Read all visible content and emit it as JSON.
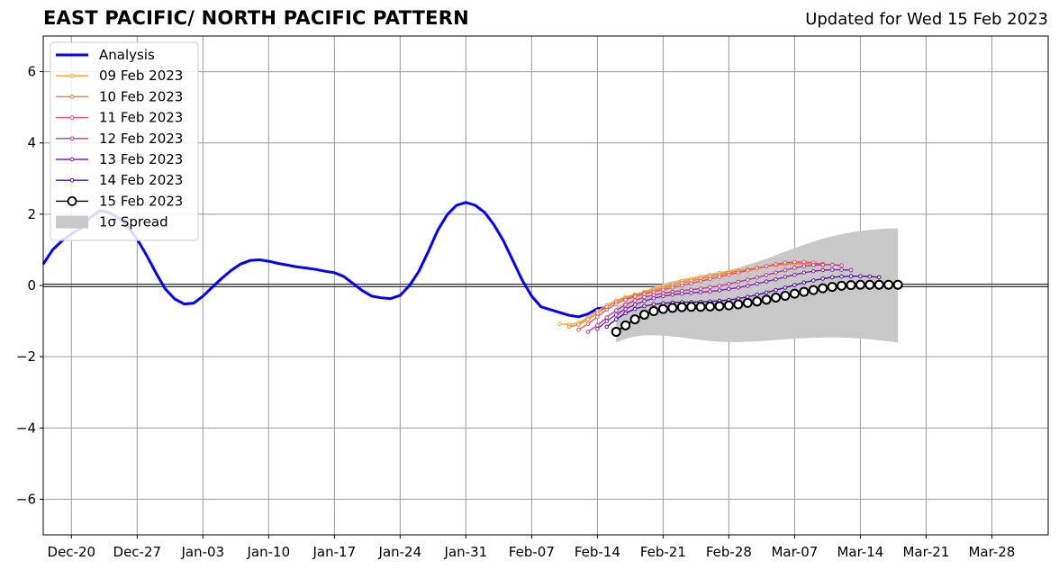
{
  "header": {
    "title": "EAST PACIFIC/ NORTH PACIFIC PATTERN",
    "subtitle": "Updated for Wed 15 Feb 2023"
  },
  "chart_data": {
    "type": "line",
    "title": "EAST PACIFIC/ NORTH PACIFIC PATTERN",
    "subtitle": "Updated for Wed 15 Feb 2023",
    "xlabel": "",
    "ylabel": "",
    "xlim": [
      "2022-12-17",
      "2023-04-03"
    ],
    "ylim": [
      -7,
      7
    ],
    "x_ticks": [
      "Dec-20",
      "Dec-27",
      "Jan-03",
      "Jan-10",
      "Jan-17",
      "Jan-24",
      "Jan-31",
      "Feb-07",
      "Feb-14",
      "Feb-21",
      "Feb-28",
      "Mar-07",
      "Mar-14",
      "Mar-21",
      "Mar-28"
    ],
    "x_tick_dates": [
      "2022-12-20",
      "2022-12-27",
      "2023-01-03",
      "2023-01-10",
      "2023-01-17",
      "2023-01-24",
      "2023-01-31",
      "2023-02-07",
      "2023-02-14",
      "2023-02-21",
      "2023-02-28",
      "2023-03-07",
      "2023-03-14",
      "2023-03-21",
      "2023-03-28"
    ],
    "y_ticks": [
      -6,
      -4,
      -2,
      0,
      2,
      4,
      6
    ],
    "y_tick_labels": [
      "−6",
      "−4",
      "−2",
      "0",
      "2",
      "4",
      "6"
    ],
    "grid": true,
    "legend_placement": "top-left",
    "zero_line": true,
    "series": [
      {
        "name": "Analysis",
        "color": "#0000ff",
        "start": "2022-12-17",
        "values": [
          0.6,
          1.0,
          1.25,
          1.45,
          1.6,
          1.9,
          2.1,
          2.05,
          1.9,
          1.65,
          1.3,
          0.85,
          0.35,
          -0.1,
          -0.38,
          -0.52,
          -0.5,
          -0.3,
          -0.05,
          0.2,
          0.42,
          0.6,
          0.7,
          0.72,
          0.68,
          0.62,
          0.57,
          0.52,
          0.49,
          0.45,
          0.4,
          0.36,
          0.25,
          0.05,
          -0.15,
          -0.3,
          -0.35,
          -0.37,
          -0.28,
          0.0,
          0.4,
          0.95,
          1.55,
          1.98,
          2.25,
          2.33,
          2.25,
          2.05,
          1.7,
          1.25,
          0.7,
          0.15,
          -0.3,
          -0.6,
          -0.68,
          -0.76,
          -0.84,
          -0.88,
          -0.8,
          -0.65,
          -0.62
        ]
      },
      {
        "name": "09 Feb 2023",
        "color": "#f5a623",
        "start": "2023-02-10",
        "values": [
          -1.08,
          -1.1,
          -1.05,
          -0.9,
          -0.72,
          -0.55,
          -0.42,
          -0.32,
          -0.25,
          -0.18,
          -0.1,
          -0.02,
          0.05,
          0.12,
          0.18,
          0.24,
          0.3,
          0.35,
          0.39,
          0.42,
          0.46,
          0.5,
          0.54,
          0.58,
          0.6,
          0.61,
          0.61,
          0.6,
          0.56
        ]
      },
      {
        "name": "10 Feb 2023",
        "color": "#f07c3a",
        "start": "2023-02-11",
        "values": [
          -1.16,
          -1.1,
          -0.95,
          -0.78,
          -0.6,
          -0.46,
          -0.36,
          -0.28,
          -0.21,
          -0.14,
          -0.07,
          0.0,
          0.07,
          0.13,
          0.19,
          0.25,
          0.3,
          0.35,
          0.4,
          0.44,
          0.48,
          0.53,
          0.57,
          0.6,
          0.62,
          0.62,
          0.61,
          0.58
        ]
      },
      {
        "name": "11 Feb 2023",
        "color": "#e0566e",
        "start": "2023-02-12",
        "values": [
          -1.24,
          -1.08,
          -0.88,
          -0.68,
          -0.52,
          -0.4,
          -0.31,
          -0.24,
          -0.18,
          -0.12,
          -0.06,
          0.0,
          0.06,
          0.12,
          0.18,
          0.24,
          0.3,
          0.36,
          0.42,
          0.48,
          0.54,
          0.6,
          0.64,
          0.66,
          0.66,
          0.64,
          0.6
        ]
      },
      {
        "name": "12 Feb 2023",
        "color": "#b83b97",
        "start": "2023-02-13",
        "values": [
          -1.3,
          -1.12,
          -0.9,
          -0.7,
          -0.54,
          -0.42,
          -0.33,
          -0.27,
          -0.22,
          -0.18,
          -0.15,
          -0.12,
          -0.09,
          -0.05,
          -0.01,
          0.04,
          0.1,
          0.16,
          0.22,
          0.29,
          0.36,
          0.43,
          0.49,
          0.54,
          0.57,
          0.58,
          0.58,
          0.56
        ]
      },
      {
        "name": "13 Feb 2023",
        "color": "#8a1fb0",
        "start": "2023-02-14",
        "values": [
          -1.22,
          -1.0,
          -0.82,
          -0.66,
          -0.54,
          -0.44,
          -0.36,
          -0.3,
          -0.26,
          -0.23,
          -0.21,
          -0.19,
          -0.17,
          -0.14,
          -0.1,
          -0.06,
          -0.01,
          0.05,
          0.11,
          0.17,
          0.24,
          0.3,
          0.36,
          0.4,
          0.43,
          0.44,
          0.44,
          0.43
        ]
      },
      {
        "name": "14 Feb 2023",
        "color": "#4b0f9c",
        "start": "2023-02-15",
        "values": [
          -1.16,
          -0.95,
          -0.78,
          -0.66,
          -0.58,
          -0.53,
          -0.5,
          -0.48,
          -0.47,
          -0.47,
          -0.46,
          -0.45,
          -0.43,
          -0.41,
          -0.37,
          -0.32,
          -0.26,
          -0.2,
          -0.13,
          -0.06,
          0.01,
          0.08,
          0.14,
          0.19,
          0.23,
          0.25,
          0.26,
          0.26,
          0.25,
          0.23
        ]
      },
      {
        "name": "15 Feb 2023",
        "color": "#000000",
        "start": "2023-02-16",
        "values": [
          -1.3,
          -1.12,
          -0.95,
          -0.82,
          -0.72,
          -0.66,
          -0.63,
          -0.61,
          -0.6,
          -0.6,
          -0.59,
          -0.58,
          -0.56,
          -0.53,
          -0.49,
          -0.45,
          -0.4,
          -0.34,
          -0.29,
          -0.23,
          -0.18,
          -0.13,
          -0.08,
          -0.04,
          -0.01,
          0.01,
          0.02,
          0.02,
          0.02,
          0.02,
          0.02
        ]
      }
    ],
    "spread": {
      "name": "1σ Spread",
      "color": "#c8c8c8",
      "start": "2023-02-16",
      "upper": [
        -0.6,
        -0.45,
        -0.3,
        -0.15,
        -0.05,
        0.05,
        0.12,
        0.18,
        0.23,
        0.28,
        0.33,
        0.38,
        0.43,
        0.5,
        0.58,
        0.66,
        0.75,
        0.85,
        0.95,
        1.05,
        1.14,
        1.23,
        1.31,
        1.38,
        1.44,
        1.49,
        1.53,
        1.56,
        1.58,
        1.6,
        1.6
      ],
      "lower": [
        -1.6,
        -1.5,
        -1.43,
        -1.4,
        -1.4,
        -1.41,
        -1.43,
        -1.46,
        -1.5,
        -1.53,
        -1.56,
        -1.58,
        -1.59,
        -1.59,
        -1.58,
        -1.57,
        -1.55,
        -1.53,
        -1.51,
        -1.49,
        -1.48,
        -1.47,
        -1.46,
        -1.46,
        -1.46,
        -1.47,
        -1.49,
        -1.51,
        -1.54,
        -1.57,
        -1.6
      ]
    }
  },
  "legend": {
    "items": [
      "Analysis",
      "09 Feb 2023",
      "10 Feb 2023",
      "11 Feb 2023",
      "12 Feb 2023",
      "13 Feb 2023",
      "14 Feb 2023",
      "15 Feb 2023",
      "1σ Spread"
    ]
  }
}
